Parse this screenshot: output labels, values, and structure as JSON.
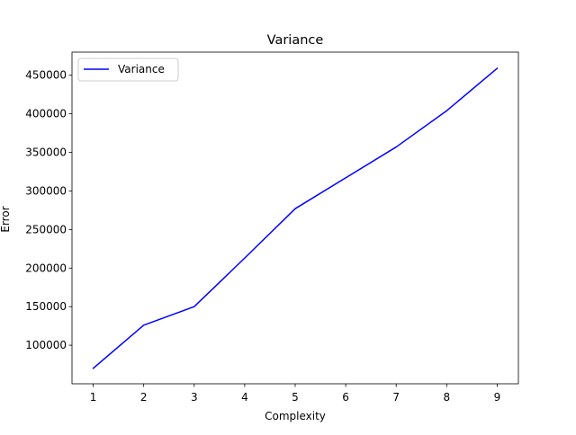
{
  "chart_data": {
    "type": "line",
    "title": "Variance",
    "xlabel": "Complexity",
    "ylabel": "Error",
    "x": [
      1,
      2,
      3,
      4,
      5,
      6,
      7,
      8,
      9
    ],
    "series": [
      {
        "name": "Variance",
        "color": "#0000ff",
        "values": [
          70000,
          126000,
          150000,
          213000,
          277000,
          317000,
          357000,
          404000,
          459000
        ]
      }
    ],
    "xlim": [
      0.58,
      9.42
    ],
    "ylim": [
      50000,
      480000
    ],
    "xticks": [
      1,
      2,
      3,
      4,
      5,
      6,
      7,
      8,
      9
    ],
    "yticks": [
      100000,
      150000,
      200000,
      250000,
      300000,
      350000,
      400000,
      450000
    ],
    "legend_position": "top-left",
    "grid": false
  }
}
